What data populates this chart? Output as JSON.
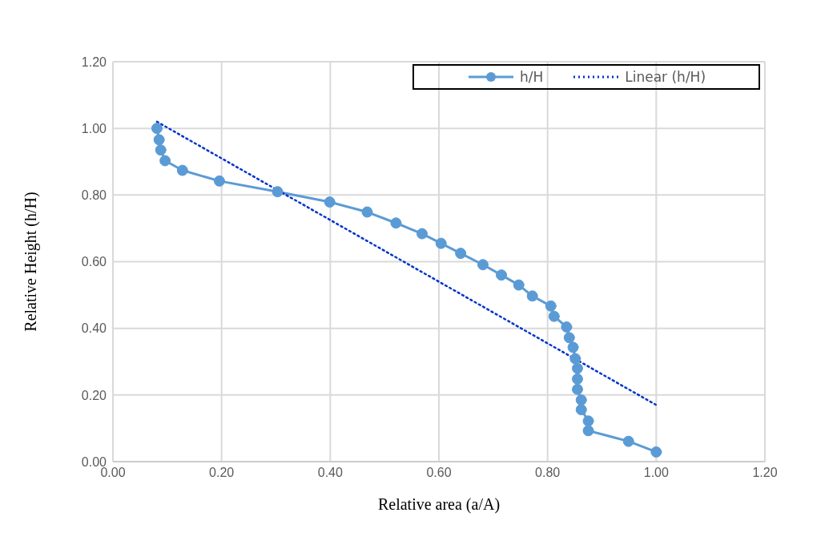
{
  "chart_data": {
    "type": "line",
    "xlabel": "Relative area (a/A)",
    "ylabel": "Relative Height (h/H)",
    "xlim": [
      0,
      1.2
    ],
    "xticks": [
      {
        "value": 0,
        "label": "0.00"
      },
      {
        "value": 0.2,
        "label": "0.20"
      },
      {
        "value": 0.4,
        "label": "0.40"
      },
      {
        "value": 0.6,
        "label": "0.60"
      },
      {
        "value": 0.8,
        "label": "0.80"
      },
      {
        "value": 1,
        "label": "1.00"
      },
      {
        "value": 1.2,
        "label": "1.20"
      }
    ],
    "ylim": [
      0,
      1.2
    ],
    "yticks": [
      {
        "value": 0,
        "label": "0.00"
      },
      {
        "value": 0.2,
        "label": "0.20"
      },
      {
        "value": 0.4,
        "label": "0.40"
      },
      {
        "value": 0.6,
        "label": "0.60"
      },
      {
        "value": 0.8,
        "label": "0.80"
      },
      {
        "value": 1,
        "label": "1.00"
      },
      {
        "value": 1.2,
        "label": "1.20"
      }
    ],
    "grid": true,
    "legend": "top right",
    "series": [
      {
        "name": "h/H",
        "color": "#5b9bd5",
        "marker": "circle",
        "line_style": "solid",
        "x": [
          0.081,
          0.085,
          0.088,
          0.096,
          0.128,
          0.196,
          0.303,
          0.399,
          0.468,
          0.521,
          0.569,
          0.604,
          0.64,
          0.681,
          0.715,
          0.747,
          0.772,
          0.806,
          0.812,
          0.835,
          0.84,
          0.847,
          0.851,
          0.855,
          0.855,
          0.855,
          0.862,
          0.862,
          0.875,
          0.875,
          0.949,
          1.0
        ],
        "values": [
          1.0,
          0.966,
          0.935,
          0.903,
          0.874,
          0.842,
          0.81,
          0.779,
          0.749,
          0.716,
          0.684,
          0.655,
          0.625,
          0.591,
          0.56,
          0.53,
          0.497,
          0.467,
          0.436,
          0.404,
          0.372,
          0.343,
          0.309,
          0.28,
          0.248,
          0.217,
          0.185,
          0.156,
          0.122,
          0.093,
          0.061,
          0.029
        ]
      },
      {
        "name": "Linear (h/H)",
        "type": "line",
        "color": "#0033cc",
        "marker": "none",
        "line_style": "dotted",
        "x": [
          0.081,
          1.0
        ],
        "values": [
          1.02,
          0.17
        ]
      }
    ]
  }
}
